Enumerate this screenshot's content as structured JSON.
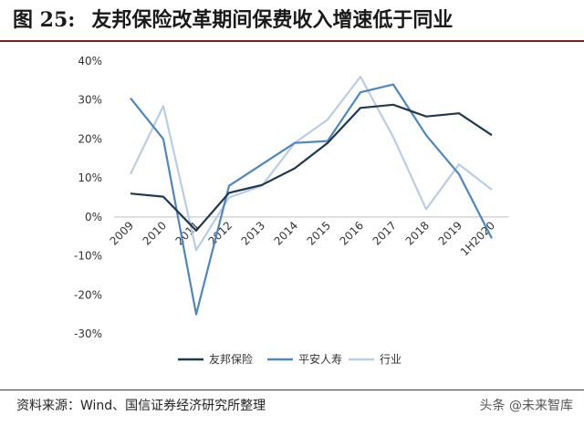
{
  "figure": {
    "label": "图 25:",
    "title": "友邦保险改革期间保费收入增速低于同业"
  },
  "source_text": "资料来源：Wind、国信证券经济研究所整理",
  "watermark_text": "头条 @未来智库",
  "chart_data": {
    "type": "line",
    "categories": [
      "2009",
      "2010",
      "2011",
      "2012",
      "2013",
      "2014",
      "2015",
      "2016",
      "2017",
      "2018",
      "2019",
      "1H2020"
    ],
    "ylim": [
      -30,
      40
    ],
    "yticks": [
      -30,
      -20,
      -10,
      0,
      10,
      20,
      30,
      40
    ],
    "ytick_labels": [
      "-30%",
      "-20%",
      "-10%",
      "0%",
      "10%",
      "20%",
      "30%",
      "40%"
    ],
    "grid": false,
    "legend_position": "bottom",
    "series": [
      {
        "name": "友邦保险",
        "color": "#22384f",
        "values": [
          6.0,
          5.2,
          -3.5,
          6.2,
          8.2,
          12.5,
          19.0,
          28.0,
          28.8,
          25.8,
          26.6,
          21.0
        ]
      },
      {
        "name": "平安人寿",
        "color": "#4f86bf",
        "values": [
          30.5,
          20.0,
          -25.0,
          8.0,
          13.5,
          19.0,
          19.5,
          32.0,
          34.0,
          21.0,
          11.0,
          -5.5
        ]
      },
      {
        "name": "行业",
        "color": "#b9cde3",
        "values": [
          11.0,
          28.5,
          -8.5,
          5.0,
          8.0,
          19.0,
          25.0,
          36.0,
          20.5,
          2.0,
          13.5,
          7.0
        ]
      }
    ]
  }
}
